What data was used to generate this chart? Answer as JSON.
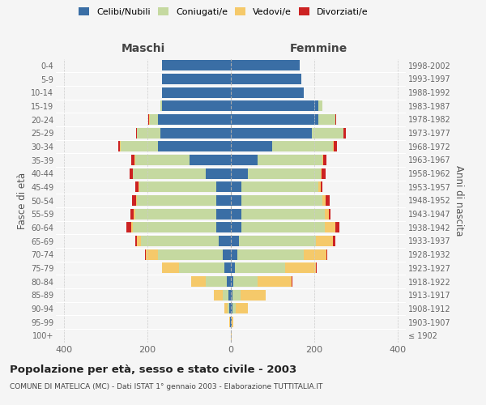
{
  "age_groups": [
    "100+",
    "95-99",
    "90-94",
    "85-89",
    "80-84",
    "75-79",
    "70-74",
    "65-69",
    "60-64",
    "55-59",
    "50-54",
    "45-49",
    "40-44",
    "35-39",
    "30-34",
    "25-29",
    "20-24",
    "15-19",
    "10-14",
    "5-9",
    "0-4"
  ],
  "birth_years": [
    "≤ 1902",
    "1903-1907",
    "1908-1912",
    "1913-1917",
    "1918-1922",
    "1923-1927",
    "1928-1932",
    "1933-1937",
    "1938-1942",
    "1943-1947",
    "1948-1952",
    "1953-1957",
    "1958-1962",
    "1963-1967",
    "1968-1972",
    "1973-1977",
    "1978-1982",
    "1983-1987",
    "1988-1992",
    "1993-1997",
    "1998-2002"
  ],
  "male_celibi": [
    0,
    1,
    3,
    5,
    10,
    15,
    20,
    30,
    35,
    35,
    35,
    35,
    60,
    100,
    175,
    170,
    175,
    165,
    165,
    165,
    165
  ],
  "male_coniugati": [
    0,
    1,
    5,
    15,
    50,
    110,
    155,
    185,
    200,
    195,
    190,
    185,
    175,
    130,
    90,
    55,
    20,
    5,
    0,
    0,
    0
  ],
  "male_vedovi": [
    0,
    1,
    8,
    20,
    35,
    40,
    30,
    10,
    5,
    3,
    2,
    1,
    1,
    1,
    1,
    1,
    1,
    0,
    0,
    0,
    0
  ],
  "male_divorziati": [
    0,
    0,
    0,
    0,
    0,
    0,
    2,
    5,
    10,
    8,
    10,
    8,
    8,
    8,
    5,
    2,
    2,
    0,
    0,
    0,
    0
  ],
  "female_celibi": [
    0,
    1,
    3,
    3,
    5,
    10,
    15,
    20,
    25,
    25,
    25,
    25,
    40,
    65,
    100,
    195,
    210,
    210,
    175,
    170,
    165
  ],
  "female_coniugati": [
    0,
    1,
    8,
    20,
    60,
    120,
    160,
    185,
    200,
    200,
    195,
    185,
    175,
    155,
    145,
    75,
    40,
    10,
    0,
    0,
    0
  ],
  "female_vedovi": [
    2,
    3,
    30,
    60,
    80,
    75,
    55,
    40,
    25,
    10,
    8,
    5,
    3,
    2,
    2,
    1,
    1,
    0,
    0,
    0,
    0
  ],
  "female_divorziati": [
    0,
    0,
    0,
    0,
    2,
    2,
    2,
    5,
    10,
    5,
    10,
    5,
    10,
    8,
    8,
    5,
    2,
    0,
    0,
    0,
    0
  ],
  "colors": {
    "celibi": "#3a6ea5",
    "coniugati": "#c5d9a0",
    "vedovi": "#f5c96a",
    "divorziati": "#cc2222"
  },
  "xlim": 420,
  "title": "Popolazione per età, sesso e stato civile - 2003",
  "subtitle": "COMUNE DI MATELICA (MC) - Dati ISTAT 1° gennaio 2003 - Elaborazione TUTTITALIA.IT",
  "ylabel_left": "Fasce di età",
  "ylabel_right": "Anni di nascita",
  "xlabel_left": "Maschi",
  "xlabel_right": "Femmine",
  "bg_color": "#f5f5f5"
}
